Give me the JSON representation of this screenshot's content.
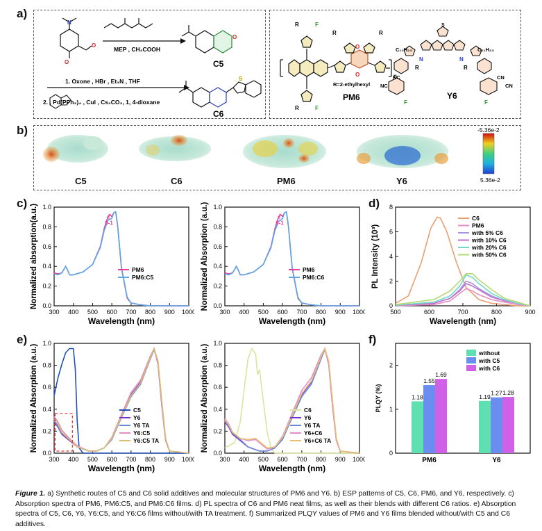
{
  "panels": {
    "a": "a)",
    "b": "b)",
    "c": "c)",
    "d": "d)",
    "e": "e)",
    "f": "f)"
  },
  "synthesis": {
    "reagent1": "MEP , CH₃COOH",
    "step1": "1.   Oxone , HBr , Et₃N , THF",
    "step2": "2.        , Pd(PPh₃)₄ , CuI , Cs₂CO₃, 1, 4-dioxane",
    "c5_label": "C5",
    "c6_label": "C6"
  },
  "structures": {
    "r_def": "R=2-ethylhexyl",
    "pm6": "PM6",
    "y6": "Y6",
    "c11": "C₁₁H₂₃",
    "n": "n",
    "r": "R",
    "f": "F",
    "s": "S",
    "n_atom": "N",
    "o_atom": "O",
    "cn": "CN",
    "nc": "NC",
    "ncn": "NC",
    "n_sub": "N"
  },
  "esp": {
    "labels": [
      "C5",
      "C6",
      "PM6",
      "Y6"
    ],
    "scale_top": "-5.36e-2",
    "scale_bottom": "5.36e-2"
  },
  "colors": {
    "pm6": "#e8409c",
    "blend": "#5aa8e6",
    "c5": "#1f4fb8",
    "y6": "#7a2fd0",
    "y6ta": "#6a8ad6",
    "y6c5": "#e58ec0",
    "y6c5ta": "#d8c070",
    "c6": "#d8e6a0",
    "y6c6": "#e38dd0",
    "y6c6ta": "#e8c070"
  },
  "chart_data": [
    {
      "id": "c-left",
      "type": "line",
      "xlabel": "Wavelength (nm)",
      "ylabel": "Normalized absorption(a.u.)",
      "xlim": [
        300,
        1000
      ],
      "ylim": [
        0,
        1.05
      ],
      "xticks": [
        "300",
        "400",
        "500",
        "600",
        "700",
        "800",
        "900",
        "1000"
      ],
      "yticks": [
        "0.0",
        "0.2",
        "0.4",
        "0.6",
        "0.8",
        "1.0"
      ],
      "annotation": "0-1",
      "series": [
        {
          "name": "PM6",
          "x": [
            300,
            320,
            340,
            360,
            370,
            380,
            400,
            450,
            500,
            540,
            560,
            580,
            590,
            600,
            610,
            620,
            630,
            650,
            680,
            700,
            750,
            800,
            900,
            1000
          ],
          "values": [
            0.35,
            0.34,
            0.35,
            0.42,
            0.38,
            0.33,
            0.33,
            0.36,
            0.44,
            0.63,
            0.82,
            0.95,
            0.97,
            0.95,
            0.99,
            1.0,
            0.85,
            0.4,
            0.08,
            0.03,
            0.01,
            0.0,
            0.0,
            0.0
          ]
        },
        {
          "name": "PM6:C5",
          "x": [
            300,
            320,
            340,
            360,
            370,
            380,
            400,
            450,
            500,
            540,
            560,
            580,
            590,
            600,
            610,
            620,
            630,
            650,
            680,
            700,
            750,
            800,
            900,
            1000
          ],
          "values": [
            0.34,
            0.33,
            0.35,
            0.42,
            0.38,
            0.33,
            0.33,
            0.36,
            0.44,
            0.62,
            0.8,
            0.91,
            0.92,
            0.93,
            0.99,
            1.0,
            0.86,
            0.41,
            0.09,
            0.03,
            0.01,
            0.0,
            0.0,
            0.0
          ]
        }
      ]
    },
    {
      "id": "c-right",
      "type": "line",
      "xlabel": "Wavelength (nm)",
      "ylabel": "Normalized Absorption (a.u.)",
      "xlim": [
        300,
        1000
      ],
      "ylim": [
        0,
        1.05
      ],
      "xticks": [
        "300",
        "400",
        "500",
        "600",
        "700",
        "800",
        "900",
        "1000"
      ],
      "yticks": [
        "0.0",
        "0.2",
        "0.4",
        "0.6",
        "0.8",
        "1.0"
      ],
      "annotation": "0-1",
      "series": [
        {
          "name": "PM6",
          "x": [
            300,
            320,
            340,
            360,
            370,
            380,
            400,
            450,
            500,
            540,
            560,
            580,
            590,
            600,
            610,
            620,
            630,
            650,
            680,
            700,
            750,
            800,
            900,
            1000
          ],
          "values": [
            0.35,
            0.34,
            0.35,
            0.42,
            0.38,
            0.33,
            0.33,
            0.36,
            0.44,
            0.63,
            0.82,
            0.95,
            0.97,
            0.95,
            0.99,
            1.0,
            0.85,
            0.4,
            0.08,
            0.03,
            0.01,
            0.0,
            0.0,
            0.0
          ]
        },
        {
          "name": "PM6:C6",
          "x": [
            300,
            320,
            340,
            360,
            370,
            380,
            400,
            450,
            500,
            540,
            560,
            580,
            590,
            600,
            610,
            620,
            630,
            650,
            680,
            700,
            750,
            800,
            900,
            1000
          ],
          "values": [
            0.34,
            0.33,
            0.35,
            0.42,
            0.38,
            0.33,
            0.33,
            0.36,
            0.44,
            0.62,
            0.8,
            0.9,
            0.91,
            0.93,
            0.99,
            1.0,
            0.86,
            0.41,
            0.09,
            0.03,
            0.01,
            0.0,
            0.0,
            0.0
          ]
        }
      ]
    },
    {
      "id": "d",
      "type": "line",
      "xlabel": "Wavelength (nm)",
      "ylabel": "PL Intensity (10³)",
      "xlim": [
        480,
        900
      ],
      "ylim": [
        0,
        8
      ],
      "xticks": [
        "500",
        "600",
        "700",
        "800",
        "900"
      ],
      "yticks": [
        "0",
        "2",
        "4",
        "6",
        "8"
      ],
      "series": [
        {
          "name": "C6",
          "x": [
            480,
            520,
            560,
            590,
            610,
            620,
            640,
            670,
            700,
            740,
            780,
            820,
            860,
            900
          ],
          "values": [
            0.2,
            0.8,
            3.5,
            6.3,
            7.2,
            7.1,
            6.0,
            3.5,
            1.5,
            0.5,
            0.2,
            0.1,
            0.0,
            0.0
          ]
        },
        {
          "name": "PM6",
          "x": [
            480,
            600,
            650,
            680,
            700,
            720,
            740,
            780,
            820,
            860,
            900
          ],
          "values": [
            0.0,
            0.1,
            0.4,
            1.0,
            1.4,
            1.2,
            0.9,
            0.5,
            0.3,
            0.1,
            0.0
          ]
        },
        {
          "name": "with 5% C6",
          "x": [
            480,
            600,
            650,
            680,
            700,
            720,
            740,
            780,
            820,
            860,
            900
          ],
          "values": [
            0.05,
            0.2,
            0.6,
            1.3,
            2.0,
            1.8,
            1.4,
            0.8,
            0.4,
            0.2,
            0.0
          ]
        },
        {
          "name": "with 10% C6",
          "x": [
            480,
            600,
            650,
            680,
            700,
            720,
            740,
            780,
            820,
            860,
            900
          ],
          "values": [
            0.05,
            0.2,
            0.6,
            1.2,
            1.8,
            1.6,
            1.3,
            0.7,
            0.4,
            0.2,
            0.0
          ]
        },
        {
          "name": "with 20% C6",
          "x": [
            480,
            600,
            650,
            680,
            700,
            720,
            740,
            780,
            820,
            860,
            900
          ],
          "values": [
            0.05,
            0.3,
            0.8,
            1.6,
            2.5,
            2.3,
            1.8,
            1.0,
            0.5,
            0.2,
            0.0
          ]
        },
        {
          "name": "with 50% C6",
          "x": [
            480,
            600,
            650,
            680,
            700,
            720,
            740,
            780,
            820,
            860,
            900
          ],
          "values": [
            0.1,
            0.5,
            1.2,
            2.0,
            2.6,
            2.6,
            2.1,
            1.3,
            0.6,
            0.3,
            0.0
          ]
        }
      ]
    },
    {
      "id": "e-left",
      "type": "line",
      "xlabel": "Wavelength (nm)",
      "ylabel": "Normalized Absorption (a.u.)",
      "xlim": [
        300,
        1000
      ],
      "ylim": [
        0,
        1.05
      ],
      "xticks": [
        "300",
        "400",
        "500",
        "600",
        "700",
        "800",
        "900",
        "1000"
      ],
      "yticks": [
        "0.0",
        "0.2",
        "0.4",
        "0.6",
        "0.8",
        "1.0"
      ],
      "series": [
        {
          "name": "C5",
          "x": [
            300,
            320,
            340,
            360,
            380,
            400,
            410,
            420,
            430,
            450,
            500,
            1000
          ],
          "values": [
            0.55,
            0.72,
            0.85,
            0.96,
            1.0,
            1.0,
            0.8,
            0.3,
            0.05,
            0.0,
            0.0,
            0.0
          ]
        },
        {
          "name": "Y6",
          "x": [
            300,
            320,
            340,
            380,
            420,
            480,
            520,
            560,
            600,
            650,
            700,
            750,
            800,
            820,
            840,
            860,
            880,
            900,
            1000
          ],
          "values": [
            0.3,
            0.25,
            0.18,
            0.12,
            0.06,
            0.02,
            0.02,
            0.05,
            0.14,
            0.36,
            0.56,
            0.68,
            0.92,
            1.0,
            0.85,
            0.45,
            0.12,
            0.02,
            0.0
          ]
        },
        {
          "name": "Y6 TA",
          "x": [
            300,
            320,
            340,
            380,
            420,
            480,
            520,
            560,
            600,
            650,
            700,
            750,
            800,
            820,
            840,
            860,
            880,
            900,
            1000
          ],
          "values": [
            0.31,
            0.26,
            0.19,
            0.13,
            0.06,
            0.02,
            0.02,
            0.05,
            0.13,
            0.34,
            0.54,
            0.66,
            0.9,
            0.99,
            0.87,
            0.48,
            0.13,
            0.02,
            0.0
          ]
        },
        {
          "name": "Y6:C5",
          "x": [
            300,
            320,
            340,
            380,
            420,
            480,
            520,
            560,
            600,
            650,
            700,
            750,
            800,
            820,
            840,
            860,
            880,
            900,
            1000
          ],
          "values": [
            0.35,
            0.3,
            0.22,
            0.14,
            0.07,
            0.02,
            0.02,
            0.05,
            0.15,
            0.37,
            0.58,
            0.7,
            0.93,
            1.0,
            0.86,
            0.46,
            0.12,
            0.02,
            0.0
          ]
        },
        {
          "name": "Y6:C5 TA",
          "x": [
            300,
            320,
            340,
            380,
            420,
            480,
            520,
            560,
            600,
            650,
            700,
            750,
            800,
            820,
            840,
            860,
            880,
            900,
            1000
          ],
          "values": [
            0.33,
            0.28,
            0.2,
            0.13,
            0.06,
            0.02,
            0.02,
            0.05,
            0.14,
            0.35,
            0.55,
            0.67,
            0.91,
            1.0,
            0.88,
            0.5,
            0.14,
            0.02,
            0.0
          ]
        }
      ]
    },
    {
      "id": "e-right",
      "type": "line",
      "xlabel": "Wavelength (nm)",
      "ylabel": "Normalized Absorption (a.u.)",
      "xlim": [
        300,
        1000
      ],
      "ylim": [
        0,
        1.05
      ],
      "xticks": [
        "300",
        "400",
        "500",
        "600",
        "700",
        "800",
        "900",
        "1000"
      ],
      "yticks": [
        "0.0",
        "0.2",
        "0.4",
        "0.6",
        "0.8",
        "1.0"
      ],
      "series": [
        {
          "name": "C6",
          "x": [
            300,
            350,
            380,
            400,
            420,
            440,
            460,
            470,
            480,
            500,
            520,
            540,
            560,
            1000
          ],
          "values": [
            0.05,
            0.1,
            0.3,
            0.6,
            0.9,
            1.0,
            0.95,
            0.75,
            0.8,
            0.5,
            0.2,
            0.05,
            0.0,
            0.0
          ]
        },
        {
          "name": "Y6",
          "x": [
            300,
            320,
            340,
            380,
            420,
            480,
            520,
            560,
            600,
            650,
            700,
            750,
            800,
            820,
            840,
            860,
            880,
            900,
            1000
          ],
          "values": [
            0.3,
            0.25,
            0.18,
            0.12,
            0.06,
            0.02,
            0.02,
            0.05,
            0.14,
            0.36,
            0.56,
            0.68,
            0.92,
            1.0,
            0.85,
            0.45,
            0.12,
            0.02,
            0.0
          ]
        },
        {
          "name": "Y6 TA",
          "x": [
            300,
            320,
            340,
            380,
            420,
            480,
            520,
            560,
            600,
            650,
            700,
            750,
            800,
            820,
            840,
            860,
            880,
            900,
            1000
          ],
          "values": [
            0.31,
            0.26,
            0.19,
            0.13,
            0.06,
            0.02,
            0.02,
            0.05,
            0.13,
            0.34,
            0.54,
            0.66,
            0.9,
            0.99,
            0.87,
            0.48,
            0.13,
            0.02,
            0.0
          ]
        },
        {
          "name": "Y6+C6",
          "x": [
            300,
            320,
            340,
            380,
            420,
            460,
            480,
            520,
            560,
            600,
            650,
            700,
            750,
            800,
            820,
            840,
            860,
            880,
            900,
            1000
          ],
          "values": [
            0.33,
            0.28,
            0.2,
            0.14,
            0.12,
            0.13,
            0.1,
            0.04,
            0.06,
            0.16,
            0.38,
            0.6,
            0.72,
            0.94,
            1.0,
            0.86,
            0.46,
            0.12,
            0.02,
            0.0
          ]
        },
        {
          "name": "Y6+C6 TA",
          "x": [
            300,
            320,
            340,
            380,
            420,
            460,
            480,
            520,
            560,
            600,
            650,
            700,
            750,
            800,
            820,
            840,
            860,
            880,
            900,
            1000
          ],
          "values": [
            0.32,
            0.27,
            0.2,
            0.14,
            0.13,
            0.14,
            0.11,
            0.05,
            0.06,
            0.15,
            0.36,
            0.57,
            0.69,
            0.92,
            1.0,
            0.88,
            0.5,
            0.14,
            0.02,
            0.0
          ]
        }
      ]
    },
    {
      "id": "f",
      "type": "bar",
      "xlabel": "",
      "ylabel": "PLQY (%)",
      "categories": [
        "PM6",
        "Y6"
      ],
      "ylim": [
        0,
        2.5
      ],
      "yticks": [
        "0",
        "1",
        "2"
      ],
      "series": [
        {
          "name": "without",
          "values": [
            1.18,
            1.19
          ],
          "labels": [
            "1.18",
            "1.19"
          ]
        },
        {
          "name": "with C5",
          "values": [
            1.55,
            1.27
          ],
          "labels": [
            "1.55",
            "1.27"
          ]
        },
        {
          "name": "with C6",
          "values": [
            1.69,
            1.28
          ],
          "labels": [
            "1.69",
            "1.28"
          ]
        }
      ]
    }
  ],
  "caption": {
    "fig": "Figure 1.",
    "text": " a) Synthetic routes of C5 and C6 solid additives and molecular structures of PM6 and Y6. b) ESP patterns of C5, C6, PM6, and Y6, respectively. c) Absorption spectra of PM6, PM6:C5, and PM6:C6 films. d) PL spectra of C6 and PM6 neat films, as well as their blends with different C6 ratios. e) Absorption spectra of C5, C6, Y6, Y6:C5, and Y6:C6 films without/with TA treatment. f) Summarized PLQY values of PM6 and Y6 films blended without/with C5 and C6 additives."
  }
}
